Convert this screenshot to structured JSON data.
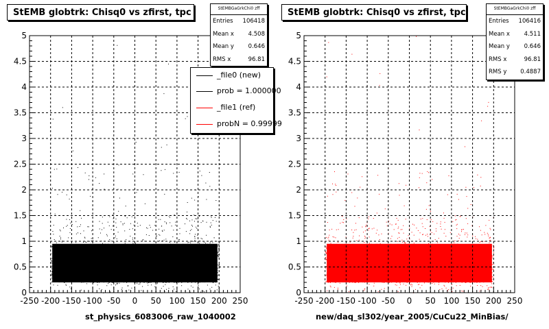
{
  "chart_data": [
    {
      "type": "scatter",
      "title": "StEMB globtrk: Chisq0 vs zfirst, tpc",
      "xlabel": "st_physics_6083006_raw_1040002",
      "ylabel": "",
      "xlim": [
        -250,
        250
      ],
      "ylim": [
        0,
        5
      ],
      "x_ticks": [
        "-250",
        "-200",
        "-150",
        "-100",
        "-50",
        "0",
        "50",
        "100",
        "150",
        "200",
        "250"
      ],
      "y_ticks": [
        "0",
        "0.5",
        "1",
        "1.5",
        "2",
        "2.5",
        "3",
        "3.5",
        "4",
        "4.5",
        "5"
      ],
      "grid": true,
      "marker_color": "#000000",
      "series": [
        {
          "name": "_file0 (new)",
          "x_range": [
            -200,
            200
          ],
          "density_by_y": [
            {
              "y": [
                0.0,
                0.2
              ],
              "level": "high"
            },
            {
              "y": [
                0.2,
                0.95
              ],
              "level": "saturated"
            },
            {
              "y": [
                0.95,
                1.5
              ],
              "level": "high"
            },
            {
              "y": [
                1.5,
                2.5
              ],
              "level": "medium"
            },
            {
              "y": [
                2.5,
                5.0
              ],
              "level": "sparse"
            }
          ]
        }
      ],
      "stats": {
        "name": "StEMBGaGrkChi0 zff",
        "entries_label": "Entries",
        "entries": "106418",
        "mean_x_label": "Mean x",
        "mean_x": "4.508",
        "mean_y_label": "Mean y",
        "mean_y": "0.646",
        "rms_x_label": "RMS x",
        "rms_x": "96.81"
      },
      "legend": {
        "position": "top-right",
        "entries": [
          {
            "label": "_file0 (new)",
            "color": "#000000"
          },
          {
            "label": "prob = 1.000000",
            "color": "#000000"
          },
          {
            "label": "_file1 (ref)",
            "color": "#ff0000"
          },
          {
            "label": "probN = 0.99999",
            "color": "#ff0000"
          }
        ]
      }
    },
    {
      "type": "scatter",
      "title": "StEMB globtrk: Chisq0 vs zfirst, tpc",
      "xlabel": "new/daq_sl302/year_2005/CuCu22_MinBias/",
      "ylabel": "",
      "xlim": [
        -250,
        250
      ],
      "ylim": [
        0,
        5
      ],
      "x_ticks": [
        "-250",
        "-200",
        "-150",
        "-100",
        "-50",
        "0",
        "50",
        "100",
        "150",
        "200",
        "250"
      ],
      "y_ticks": [
        "0",
        "0.5",
        "1",
        "1.5",
        "2",
        "2.5",
        "3",
        "3.5",
        "4",
        "4.5",
        "5"
      ],
      "grid": true,
      "marker_color": "#ff0000",
      "series": [
        {
          "name": "_file1 (ref)",
          "x_range": [
            -200,
            200
          ],
          "density_by_y": [
            {
              "y": [
                0.0,
                0.2
              ],
              "level": "high"
            },
            {
              "y": [
                0.2,
                0.95
              ],
              "level": "saturated"
            },
            {
              "y": [
                0.95,
                1.5
              ],
              "level": "high"
            },
            {
              "y": [
                1.5,
                2.5
              ],
              "level": "medium"
            },
            {
              "y": [
                2.5,
                5.0
              ],
              "level": "sparse"
            }
          ]
        }
      ],
      "stats": {
        "name": "StEMBGaGrkChi0 zff",
        "entries_label": "Entries",
        "entries": "106416",
        "mean_x_label": "Mean x",
        "mean_x": "4.511",
        "mean_y_label": "Mean y",
        "mean_y": "0.646",
        "rms_x_label": "RMS x",
        "rms_x": "96.81",
        "rms_y_label": "RMS y",
        "rms_y": "0.4887"
      }
    }
  ]
}
